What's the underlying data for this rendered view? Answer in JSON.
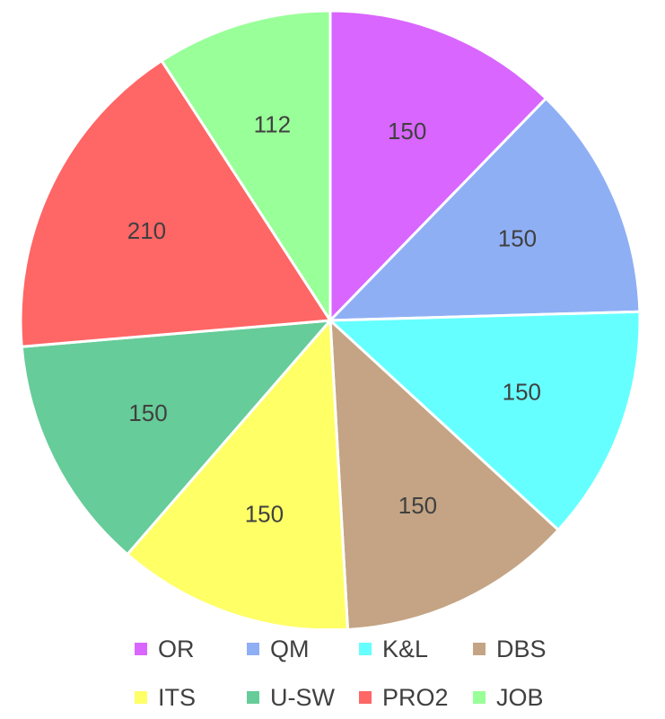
{
  "chart_data": {
    "type": "pie",
    "title": "",
    "start_angle_deg": 0,
    "direction": "clockwise",
    "slices": [
      {
        "label": "OR",
        "value": 150,
        "color": "#D966FF"
      },
      {
        "label": "QM",
        "value": 150,
        "color": "#8FAFF5"
      },
      {
        "label": "K&L",
        "value": 150,
        "color": "#66FFFF"
      },
      {
        "label": "DBS",
        "value": 150,
        "color": "#C4A484"
      },
      {
        "label": "ITS",
        "value": 150,
        "color": "#FFFF66"
      },
      {
        "label": "U-SW",
        "value": 150,
        "color": "#66CC99"
      },
      {
        "label": "PRO2",
        "value": 210,
        "color": "#FF6666"
      },
      {
        "label": "JOB",
        "value": 112,
        "color": "#99FF99"
      }
    ],
    "data_labels_shown": true,
    "legend_position": "bottom"
  },
  "legend": {
    "rows": [
      [
        "OR",
        "QM",
        "K&L",
        "DBS"
      ],
      [
        "ITS",
        "U-SW",
        "PRO2",
        "JOB"
      ]
    ]
  }
}
